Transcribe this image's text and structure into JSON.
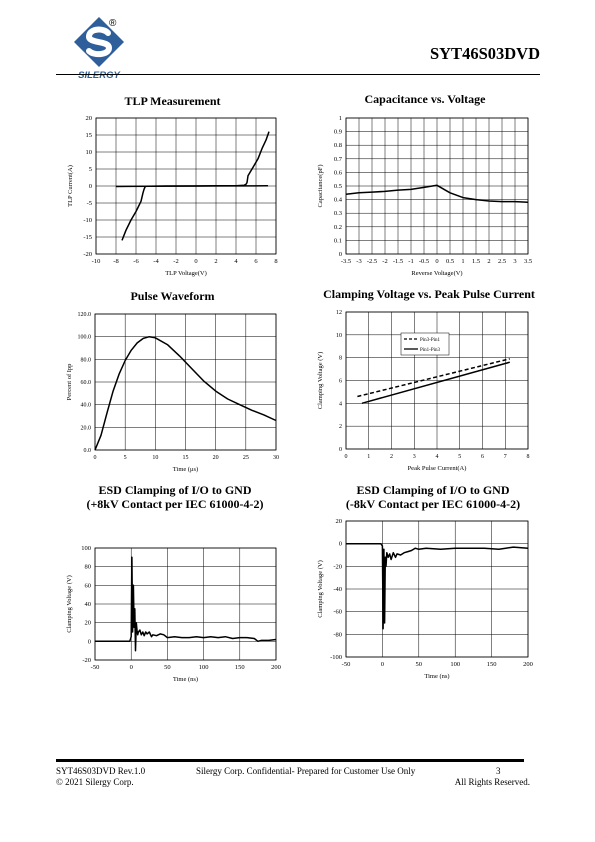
{
  "header": {
    "doc_id": "SYT46S03DVD",
    "brand": "SILERGY",
    "registered_mark": "®"
  },
  "footer": {
    "rev": "SYT46S03DVD Rev.1.0",
    "confidential": "Silergy Corp. Confidential- Prepared for Customer Use Only",
    "page": "3",
    "copyright": "© 2021 Silergy Corp.",
    "rights": "All Rights Reserved."
  },
  "chart_data": [
    {
      "type": "line",
      "title": "TLP Measurement",
      "xlabel": "TLP Voltage(V)",
      "ylabel": "TLP Current(A)",
      "xlim": [
        -10,
        8
      ],
      "ylim": [
        -20,
        20
      ],
      "xticks": [
        -10,
        -8,
        -6,
        -4,
        -2,
        0,
        2,
        4,
        6,
        8
      ],
      "yticks": [
        -20,
        -15,
        -10,
        -5,
        0,
        5,
        10,
        15,
        20
      ],
      "grid": true,
      "series": [
        {
          "x": [
            -7.4,
            -7.0,
            -6.5,
            -6.0,
            -5.5,
            -5.3,
            -5.2,
            -5.1,
            -5.0,
            -3,
            -1,
            0,
            2,
            4,
            4.8,
            5.0,
            5.1,
            5.2,
            5.8,
            6.2,
            6.6,
            7.0,
            7.3
          ],
          "y": [
            -16,
            -13,
            -10,
            -7.5,
            -4.5,
            -2,
            -1,
            -0.3,
            -0.1,
            0,
            0,
            0,
            0.05,
            0.1,
            0.2,
            0.5,
            1,
            3,
            6,
            8,
            11,
            13.5,
            16
          ]
        },
        {
          "x": [
            -8,
            0,
            7.2
          ],
          "y": [
            -0.15,
            0,
            0.05
          ]
        }
      ]
    },
    {
      "type": "line",
      "title": "Capacitance vs. Voltage",
      "xlabel": "Reverse Voltage(V)",
      "ylabel": "Capacitance(pF)",
      "xlim": [
        -3.5,
        3.5
      ],
      "ylim": [
        0,
        1
      ],
      "xticks": [
        -3.5,
        -3,
        -2.5,
        -2,
        -1.5,
        -1,
        -0.5,
        0,
        0.5,
        1,
        1.5,
        2,
        2.5,
        3,
        3.5
      ],
      "yticks": [
        0,
        0.1,
        0.2,
        0.3,
        0.4,
        0.5,
        0.6,
        0.7,
        0.8,
        0.9,
        1
      ],
      "grid": true,
      "series": [
        {
          "x": [
            -3.5,
            -3,
            -2.5,
            -2,
            -1.5,
            -1,
            -0.5,
            0,
            0.5,
            1,
            1.5,
            2,
            2.5,
            3,
            3.5
          ],
          "y": [
            0.44,
            0.45,
            0.455,
            0.46,
            0.47,
            0.475,
            0.49,
            0.505,
            0.45,
            0.415,
            0.4,
            0.39,
            0.385,
            0.385,
            0.38
          ]
        }
      ]
    },
    {
      "type": "line",
      "title": "Pulse Waveform",
      "xlabel": "Time (μs)",
      "ylabel": "Percent of Ipp",
      "xlim": [
        0,
        30
      ],
      "ylim": [
        0,
        120
      ],
      "xticks": [
        0,
        5,
        10,
        15,
        20,
        25,
        30
      ],
      "yticks": [
        "0.0",
        "20.0",
        "40.0",
        "60.0",
        "80.0",
        "100.0",
        "120.0"
      ],
      "grid": true,
      "series": [
        {
          "x": [
            0,
            1,
            2,
            3,
            4,
            5,
            6,
            7,
            8,
            9,
            10,
            12,
            14,
            16,
            18,
            20,
            22,
            24,
            26,
            28,
            30
          ],
          "y": [
            0,
            13,
            33,
            52,
            67,
            79,
            88,
            94.5,
            98.5,
            100,
            99,
            93,
            83,
            72,
            61,
            52,
            45,
            40,
            35,
            31,
            26
          ]
        }
      ]
    },
    {
      "type": "line",
      "title": "Clamping Voltage vs. Peak Pulse Current",
      "xlabel": "Peak Pulse Current(A)",
      "ylabel": "Clamping Voltage (V)",
      "xlim": [
        0,
        8
      ],
      "ylim": [
        0,
        12
      ],
      "xticks": [
        0,
        1,
        2,
        3,
        4,
        5,
        6,
        7,
        8
      ],
      "yticks": [
        0,
        2,
        4,
        6,
        8,
        10,
        12
      ],
      "grid": true,
      "legend": "top-center",
      "series": [
        {
          "name": "Pin3-Pin1",
          "style": "dashed",
          "x": [
            0.5,
            7.2
          ],
          "y": [
            4.6,
            7.9
          ]
        },
        {
          "name": "Pin1-Pin3",
          "style": "solid",
          "x": [
            0.7,
            7.2
          ],
          "y": [
            4.0,
            7.6
          ]
        }
      ]
    },
    {
      "type": "line",
      "title": "ESD Clamping of I/O to GND",
      "subtitle": "(+8kV Contact per IEC 61000-4-2)",
      "xlabel": "Time (ns)",
      "ylabel": "Clamping Voltage (V)",
      "xlim": [
        -50,
        200
      ],
      "ylim": [
        -20,
        100
      ],
      "xticks": [
        -50,
        0,
        50,
        100,
        150,
        200
      ],
      "yticks": [
        -20,
        0,
        20,
        40,
        60,
        80,
        100
      ],
      "grid": true,
      "series": [
        {
          "x": [
            -50,
            -2,
            0,
            1,
            2,
            3,
            4,
            5,
            6,
            7,
            8,
            9,
            10,
            12,
            14,
            16,
            18,
            20,
            22,
            25,
            28,
            30,
            35,
            40,
            45,
            50,
            60,
            70,
            80,
            90,
            100,
            110,
            120,
            130,
            140,
            150,
            160,
            170,
            175,
            180,
            190,
            200
          ],
          "y": [
            0,
            0,
            5,
            90,
            10,
            60,
            15,
            35,
            -10,
            20,
            12,
            7,
            10,
            12,
            7,
            10,
            6,
            10,
            8,
            10,
            5,
            7,
            6,
            8,
            7,
            4,
            5,
            4,
            4,
            5,
            4,
            5,
            4,
            5,
            3,
            4,
            4,
            3,
            0,
            1,
            1,
            2
          ]
        }
      ]
    },
    {
      "type": "line",
      "title": "ESD Clamping of I/O to GND",
      "subtitle": "(-8kV Contact per IEC 61000-4-2)",
      "xlabel": "Time (ns)",
      "ylabel": "Clamping Voltage (V)",
      "xlim": [
        -50,
        200
      ],
      "ylim": [
        -100,
        20
      ],
      "xticks": [
        -50,
        0,
        50,
        100,
        150,
        200
      ],
      "yticks": [
        -100,
        -80,
        -60,
        -40,
        -20,
        0,
        20
      ],
      "grid": true,
      "series": [
        {
          "x": [
            -50,
            -2,
            0,
            1,
            2,
            3,
            4,
            5,
            6,
            7,
            8,
            10,
            12,
            15,
            18,
            20,
            25,
            30,
            35,
            40,
            45,
            50,
            60,
            80,
            100,
            120,
            140,
            160,
            180,
            200
          ],
          "y": [
            0,
            0,
            -2,
            -75,
            -5,
            -70,
            -12,
            -20,
            -8,
            -10,
            -12,
            -9,
            -14,
            -8,
            -12,
            -9,
            -10,
            -8,
            -7,
            -6,
            -4,
            -5,
            -4,
            -5,
            -4,
            -4,
            -4,
            -5,
            -3,
            -4
          ]
        }
      ]
    }
  ]
}
